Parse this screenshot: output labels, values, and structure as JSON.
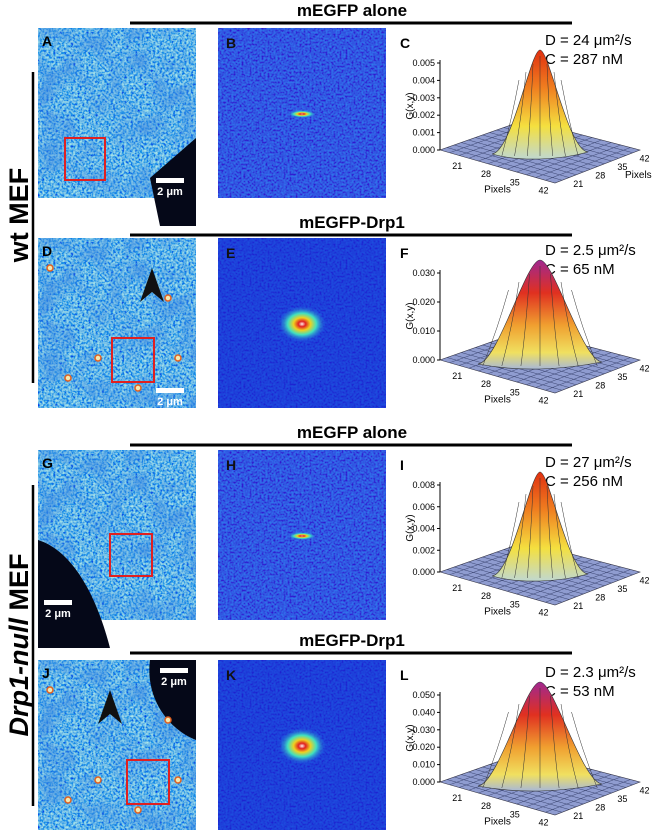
{
  "side_labels": {
    "wt": "wt MEF",
    "null_italic": "Drp1-null",
    "null_rest": "MEF"
  },
  "rows": [
    {
      "header": "mEGFP alone",
      "panels": [
        "A",
        "B",
        "C"
      ],
      "scale_bar": "2 μm",
      "diffusion": "D = 24 μm²/s",
      "concentration": "C = 287 nM",
      "z_label": "G(x,y)",
      "z_ticks": [
        "0.005",
        "0.004",
        "0.003",
        "0.002",
        "0.001",
        "0.000"
      ],
      "x_label": "Pixels",
      "x_ticks": [
        "21",
        "28",
        "35",
        "42"
      ],
      "y_label": "Pixels",
      "y_ticks": [
        "21",
        "28",
        "35",
        "42"
      ]
    },
    {
      "header": "mEGFP-Drp1",
      "panels": [
        "D",
        "E",
        "F"
      ],
      "scale_bar": "2 μm",
      "diffusion": "D = 2.5 μm²/s",
      "concentration": "C = 65 nM",
      "z_label": "G(x,y)",
      "z_ticks": [
        "0.030",
        "0.020",
        "0.010",
        "0.000"
      ],
      "x_label": "Pixels",
      "x_ticks": [
        "21",
        "28",
        "35",
        "42"
      ],
      "y_ticks": [
        "21",
        "28",
        "35",
        "42"
      ]
    },
    {
      "header": "mEGFP alone",
      "panels": [
        "G",
        "H",
        "I"
      ],
      "scale_bar": "2 μm",
      "diffusion": "D = 27 μm²/s",
      "concentration": "C = 256 nM",
      "z_label": "G(x,y)",
      "z_ticks": [
        "0.008",
        "0.006",
        "0.004",
        "0.002",
        "0.000"
      ],
      "x_label": "Pixels",
      "x_ticks": [
        "21",
        "28",
        "35",
        "42"
      ],
      "y_ticks": [
        "21",
        "28",
        "35",
        "42"
      ]
    },
    {
      "header": "mEGFP-Drp1",
      "panels": [
        "J",
        "K",
        "L"
      ],
      "scale_bar": "2 μm",
      "diffusion": "D = 2.3 μm²/s",
      "concentration": "C = 53 nM",
      "z_label": "G(x,y)",
      "z_ticks": [
        "0.050",
        "0.040",
        "0.030",
        "0.020",
        "0.010",
        "0.000"
      ],
      "x_label": "Pixels",
      "x_ticks": [
        "21",
        "28",
        "35",
        "42"
      ],
      "y_ticks": [
        "21",
        "28",
        "35",
        "42"
      ]
    }
  ]
}
